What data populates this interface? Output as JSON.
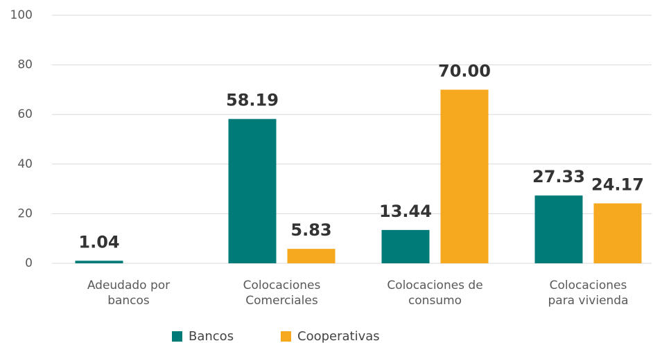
{
  "chart_data": {
    "type": "bar",
    "categories": [
      "Adeudado por\nbancos",
      "Colocaciones\nComerciales",
      "Colocaciones de\nconsumo",
      "Colocaciones\npara  vivienda"
    ],
    "series": [
      {
        "name": "Bancos",
        "color": "#007b78",
        "values": [
          1.04,
          58.19,
          13.44,
          27.33
        ],
        "value_labels": [
          "1.04",
          "58.19",
          "13.44",
          "27.33"
        ]
      },
      {
        "name": "Cooperativas",
        "color": "#f6a81f",
        "values": [
          null,
          5.83,
          70,
          24.17
        ],
        "value_labels": [
          null,
          "5.83",
          "70.00",
          "24.17"
        ]
      }
    ],
    "ylim": [
      0,
      100
    ],
    "yticks": [
      0,
      20,
      40,
      60,
      80,
      100
    ],
    "grid": true,
    "legend": "bottom"
  }
}
